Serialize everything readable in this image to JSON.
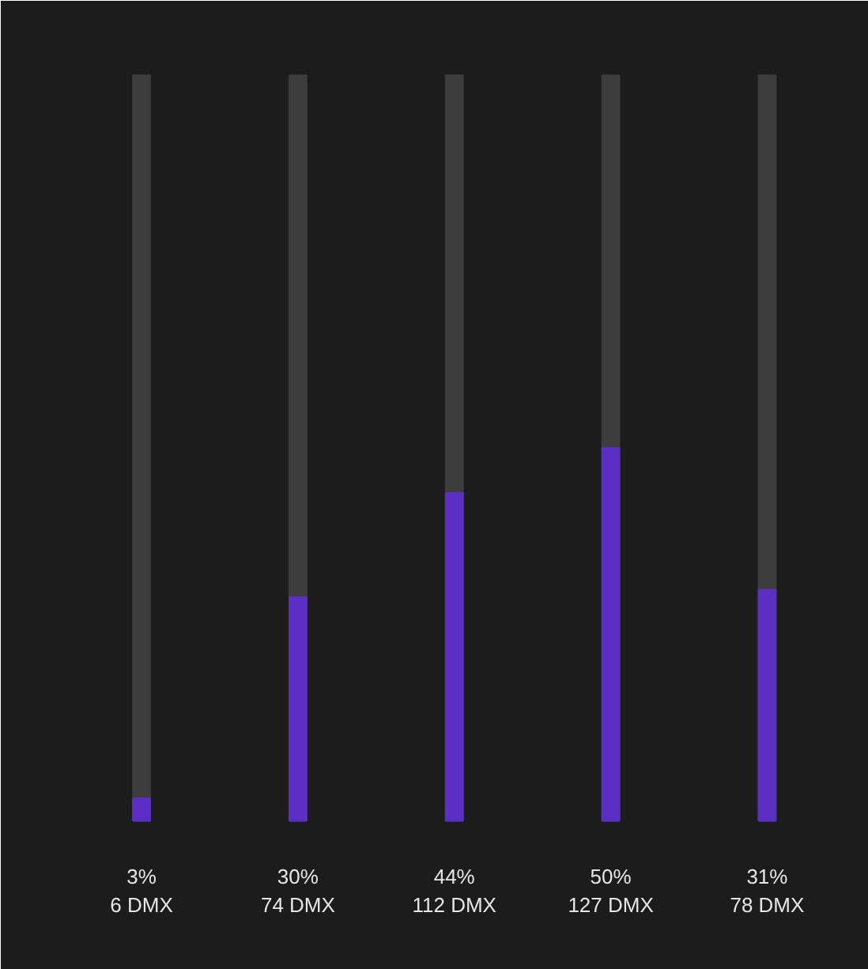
{
  "chart_data": {
    "type": "bar",
    "categories": [
      null,
      null,
      null,
      null,
      null
    ],
    "values": [
      3,
      30,
      44,
      50,
      31
    ],
    "value_labels": [
      "3%\n6 DMX",
      "30%\n74 DMX",
      "44%\n112 DMX",
      "50%\n127 DMX",
      "31%\n78 DMX"
    ],
    "color": "#5b2fc4",
    "ylim": [
      0,
      100
    ],
    "tick_labels": false
  }
}
